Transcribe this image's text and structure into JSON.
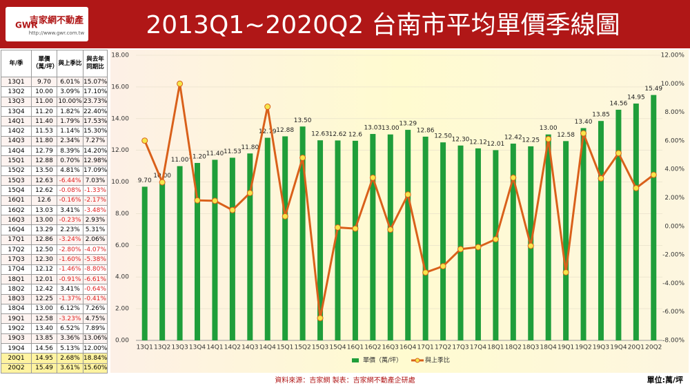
{
  "header": {
    "logo_text": "吉家網不動產",
    "logo_sub": "GWR",
    "logo_url": "http://www.gwr.com.tw",
    "title": "2013Q1~2020Q2  台南市平均單價季線圖"
  },
  "table": {
    "columns": [
      "年/季",
      "單價（萬/坪）",
      "與上季比",
      "與去年同期比"
    ],
    "rows": [
      [
        "13Q1",
        "9.70",
        "6.01%",
        "15.07%"
      ],
      [
        "13Q2",
        "10.00",
        "3.09%",
        "17.10%"
      ],
      [
        "13Q3",
        "11.00",
        "10.00%",
        "23.73%"
      ],
      [
        "13Q4",
        "11.20",
        "1.82%",
        "22.40%"
      ],
      [
        "14Q1",
        "11.40",
        "1.79%",
        "17.53%"
      ],
      [
        "14Q2",
        "11.53",
        "1.14%",
        "15.30%"
      ],
      [
        "14Q3",
        "11.80",
        "2.34%",
        "7.27%"
      ],
      [
        "14Q4",
        "12.79",
        "8.39%",
        "14.20%"
      ],
      [
        "15Q1",
        "12.88",
        "0.70%",
        "12.98%"
      ],
      [
        "15Q2",
        "13.50",
        "4.81%",
        "17.09%"
      ],
      [
        "15Q3",
        "12.63",
        "-6.44%",
        "7.03%"
      ],
      [
        "15Q4",
        "12.62",
        "-0.08%",
        "-1.33%"
      ],
      [
        "16Q1",
        "12.6",
        "-0.16%",
        "-2.17%"
      ],
      [
        "16Q2",
        "13.03",
        "3.41%",
        "-3.48%"
      ],
      [
        "16Q3",
        "13.00",
        "-0.23%",
        "2.93%"
      ],
      [
        "16Q4",
        "13.29",
        "2.23%",
        "5.31%"
      ],
      [
        "17Q1",
        "12.86",
        "-3.24%",
        "2.06%"
      ],
      [
        "17Q2",
        "12.50",
        "-2.80%",
        "-4.07%"
      ],
      [
        "17Q3",
        "12.30",
        "-1.60%",
        "-5.38%"
      ],
      [
        "17Q4",
        "12.12",
        "-1.46%",
        "-8.80%"
      ],
      [
        "18Q1",
        "12.01",
        "-0.91%",
        "-6.61%"
      ],
      [
        "18Q2",
        "12.42",
        "3.41%",
        "-0.64%"
      ],
      [
        "18Q3",
        "12.25",
        "-1.37%",
        "-0.41%"
      ],
      [
        "18Q4",
        "13.00",
        "6.12%",
        "7.26%"
      ],
      [
        "19Q1",
        "12.58",
        "-3.23%",
        "4.75%"
      ],
      [
        "19Q2",
        "13.40",
        "6.52%",
        "7.89%"
      ],
      [
        "19Q3",
        "13.85",
        "3.36%",
        "13.06%"
      ],
      [
        "19Q4",
        "14.56",
        "5.13%",
        "12.00%"
      ],
      [
        "20Q1",
        "14.95",
        "2.68%",
        "18.84%"
      ],
      [
        "20Q2",
        "15.49",
        "3.61%",
        "15.60%"
      ]
    ]
  },
  "chart_data": {
    "type": "combo",
    "categories": [
      "13Q1",
      "13Q2",
      "13Q3",
      "13Q4",
      "14Q1",
      "14Q2",
      "14Q3",
      "14Q4",
      "15Q1",
      "15Q2",
      "15Q3",
      "15Q4",
      "16Q1",
      "16Q2",
      "16Q3",
      "16Q4",
      "17Q1",
      "17Q2",
      "17Q3",
      "17Q4",
      "18Q1",
      "18Q2",
      "18Q3",
      "18Q4",
      "19Q1",
      "19Q2",
      "19Q3",
      "19Q4",
      "20Q1",
      "20Q2"
    ],
    "series": [
      {
        "name": "單價（萬/坪）",
        "type": "bar",
        "color": "#1f9e3a",
        "values": [
          9.7,
          10,
          11,
          11.2,
          11.4,
          11.53,
          11.8,
          12.79,
          12.88,
          13.5,
          12.63,
          12.62,
          12.6,
          13.03,
          13,
          13.29,
          12.86,
          12.5,
          12.3,
          12.12,
          12.01,
          12.42,
          12.25,
          13,
          12.58,
          13.4,
          13.85,
          14.56,
          14.95,
          15.49
        ],
        "value_labels": [
          "9.70",
          "10.00",
          "11.00",
          "11.20",
          "11.40",
          "11.53",
          "11.80",
          "12.79",
          "12.88",
          "13.50",
          "12.63",
          "12.62",
          "12.6",
          "13.03",
          "13.00",
          "13.29",
          "12.86",
          "12.50",
          "12.30",
          "12.12",
          "12.01",
          "12.42",
          "12.25",
          "13.00",
          "12.58",
          "13.40",
          "13.85",
          "14.56",
          "14.95",
          "15.49"
        ]
      },
      {
        "name": "與上季比",
        "type": "line",
        "axis": "y2",
        "color": "#d9601a",
        "marker_color": "#f5e64a",
        "values": [
          6.01,
          3.09,
          10,
          1.82,
          1.79,
          1.14,
          2.34,
          8.39,
          0.7,
          4.81,
          -6.44,
          -0.08,
          -0.16,
          3.41,
          -0.23,
          2.23,
          -3.24,
          -2.8,
          -1.6,
          -1.46,
          -0.91,
          3.41,
          -1.37,
          6.12,
          -3.23,
          6.52,
          3.36,
          5.13,
          2.68,
          3.61
        ]
      }
    ],
    "ylim": [
      0,
      18
    ],
    "yticks": [
      {
        "value": 0,
        "label": "0.00"
      },
      {
        "value": 2,
        "label": "2.00"
      },
      {
        "value": 4,
        "label": "4.00"
      },
      {
        "value": 6,
        "label": "6.00"
      },
      {
        "value": 8,
        "label": "8.00"
      },
      {
        "value": 10,
        "label": "10.00"
      },
      {
        "value": 12,
        "label": "12.00"
      },
      {
        "value": 14,
        "label": "14.00"
      },
      {
        "value": 16,
        "label": "16.00"
      },
      {
        "value": 18,
        "label": "18.00"
      }
    ],
    "y2lim": [
      -8,
      12
    ],
    "y2ticks": [
      {
        "value": -8,
        "label": "-8.00%"
      },
      {
        "value": -6,
        "label": "-6.00%"
      },
      {
        "value": -4,
        "label": "-4.00%"
      },
      {
        "value": -2,
        "label": "-2.00%"
      },
      {
        "value": 0,
        "label": "0.00%"
      },
      {
        "value": 2,
        "label": "2.00%"
      },
      {
        "value": 4,
        "label": "4.00%"
      },
      {
        "value": 6,
        "label": "6.00%"
      },
      {
        "value": 8,
        "label": "8.00%"
      },
      {
        "value": 10,
        "label": "10.00%"
      },
      {
        "value": 12,
        "label": "12.00%"
      }
    ],
    "legend": "bottom"
  },
  "footer": {
    "source": "資料來源：吉家網  製表：吉家網不動產企研處",
    "unit": "單位:萬/坪"
  }
}
